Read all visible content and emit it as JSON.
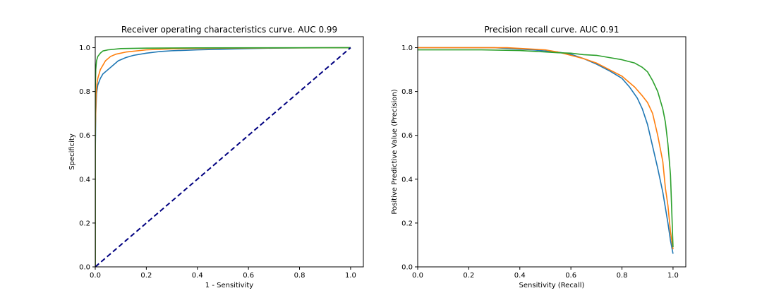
{
  "chart_data": [
    {
      "type": "line",
      "title": "Receiver operating characteristics curve. AUC 0.99",
      "xlabel": "1 - Sensitivity",
      "ylabel": "Specificity",
      "xlim": [
        0,
        1.05
      ],
      "ylim": [
        0,
        1.05
      ],
      "xticks": [
        0.0,
        0.2,
        0.4,
        0.6,
        0.8,
        1.0
      ],
      "yticks": [
        0.0,
        0.2,
        0.4,
        0.6,
        0.8,
        1.0
      ],
      "tick_labels": [
        "0.0",
        "0.2",
        "0.4",
        "0.6",
        "0.8",
        "1.0"
      ],
      "grid": false,
      "series": [
        {
          "color": "#1f77b4",
          "points": [
            [
              0,
              0
            ],
            [
              0,
              0.5
            ],
            [
              0.002,
              0.7
            ],
            [
              0.005,
              0.79
            ],
            [
              0.01,
              0.83
            ],
            [
              0.02,
              0.86
            ],
            [
              0.03,
              0.88
            ],
            [
              0.05,
              0.9
            ],
            [
              0.07,
              0.92
            ],
            [
              0.09,
              0.94
            ],
            [
              0.12,
              0.955
            ],
            [
              0.15,
              0.965
            ],
            [
              0.2,
              0.975
            ],
            [
              0.25,
              0.982
            ],
            [
              0.3,
              0.986
            ],
            [
              0.4,
              0.99
            ],
            [
              0.5,
              0.993
            ],
            [
              0.6,
              0.996
            ],
            [
              0.7,
              0.998
            ],
            [
              0.8,
              0.999
            ],
            [
              1.0,
              1.0
            ]
          ]
        },
        {
          "color": "#ff7f0e",
          "points": [
            [
              0,
              0
            ],
            [
              0,
              0.6
            ],
            [
              0.003,
              0.78
            ],
            [
              0.006,
              0.83
            ],
            [
              0.01,
              0.86
            ],
            [
              0.02,
              0.9
            ],
            [
              0.03,
              0.92
            ],
            [
              0.04,
              0.94
            ],
            [
              0.06,
              0.96
            ],
            [
              0.08,
              0.97
            ],
            [
              0.12,
              0.98
            ],
            [
              0.2,
              0.99
            ],
            [
              0.3,
              0.995
            ],
            [
              0.5,
              0.998
            ],
            [
              1.0,
              1.0
            ]
          ]
        },
        {
          "color": "#2ca02c",
          "points": [
            [
              0,
              0
            ],
            [
              0,
              0.8
            ],
            [
              0.002,
              0.9
            ],
            [
              0.005,
              0.94
            ],
            [
              0.01,
              0.96
            ],
            [
              0.02,
              0.975
            ],
            [
              0.03,
              0.985
            ],
            [
              0.05,
              0.99
            ],
            [
              0.1,
              0.996
            ],
            [
              0.2,
              0.998
            ],
            [
              0.4,
              0.999
            ],
            [
              1.0,
              1.0
            ]
          ]
        },
        {
          "color": "#000080",
          "dashed": true,
          "points": [
            [
              0,
              0
            ],
            [
              1,
              1
            ]
          ]
        }
      ]
    },
    {
      "type": "line",
      "title": "Precision recall curve. AUC 0.91",
      "xlabel": "Sensitivity (Recall)",
      "ylabel": "Positive Predictive Value (Precision)",
      "xlim": [
        0,
        1.05
      ],
      "ylim": [
        0,
        1.05
      ],
      "xticks": [
        0.0,
        0.2,
        0.4,
        0.6,
        0.8,
        1.0
      ],
      "yticks": [
        0.0,
        0.2,
        0.4,
        0.6,
        0.8,
        1.0
      ],
      "tick_labels": [
        "0.0",
        "0.2",
        "0.4",
        "0.6",
        "0.8",
        "1.0"
      ],
      "grid": false,
      "series": [
        {
          "color": "#1f77b4",
          "points": [
            [
              0,
              1.0
            ],
            [
              0.3,
              1.0
            ],
            [
              0.45,
              0.99
            ],
            [
              0.55,
              0.98
            ],
            [
              0.6,
              0.97
            ],
            [
              0.65,
              0.95
            ],
            [
              0.7,
              0.925
            ],
            [
              0.75,
              0.895
            ],
            [
              0.8,
              0.86
            ],
            [
              0.83,
              0.82
            ],
            [
              0.86,
              0.77
            ],
            [
              0.88,
              0.72
            ],
            [
              0.9,
              0.65
            ],
            [
              0.92,
              0.55
            ],
            [
              0.94,
              0.45
            ],
            [
              0.96,
              0.34
            ],
            [
              0.97,
              0.27
            ],
            [
              0.98,
              0.2
            ],
            [
              0.99,
              0.12
            ],
            [
              1.0,
              0.06
            ]
          ]
        },
        {
          "color": "#ff7f0e",
          "points": [
            [
              0,
              1.0
            ],
            [
              0.35,
              1.0
            ],
            [
              0.5,
              0.99
            ],
            [
              0.55,
              0.98
            ],
            [
              0.6,
              0.965
            ],
            [
              0.65,
              0.95
            ],
            [
              0.7,
              0.93
            ],
            [
              0.75,
              0.9
            ],
            [
              0.8,
              0.87
            ],
            [
              0.85,
              0.82
            ],
            [
              0.88,
              0.78
            ],
            [
              0.9,
              0.75
            ],
            [
              0.92,
              0.7
            ],
            [
              0.94,
              0.6
            ],
            [
              0.96,
              0.48
            ],
            [
              0.97,
              0.36
            ],
            [
              0.98,
              0.28
            ],
            [
              0.99,
              0.16
            ],
            [
              1.0,
              0.08
            ]
          ]
        },
        {
          "color": "#2ca02c",
          "points": [
            [
              0,
              0.99
            ],
            [
              0.25,
              0.99
            ],
            [
              0.4,
              0.987
            ],
            [
              0.55,
              0.977
            ],
            [
              0.6,
              0.975
            ],
            [
              0.65,
              0.968
            ],
            [
              0.7,
              0.965
            ],
            [
              0.75,
              0.955
            ],
            [
              0.8,
              0.945
            ],
            [
              0.85,
              0.93
            ],
            [
              0.88,
              0.91
            ],
            [
              0.9,
              0.89
            ],
            [
              0.92,
              0.85
            ],
            [
              0.94,
              0.8
            ],
            [
              0.96,
              0.72
            ],
            [
              0.97,
              0.66
            ],
            [
              0.98,
              0.56
            ],
            [
              0.99,
              0.42
            ],
            [
              1.0,
              0.09
            ]
          ]
        }
      ]
    }
  ]
}
